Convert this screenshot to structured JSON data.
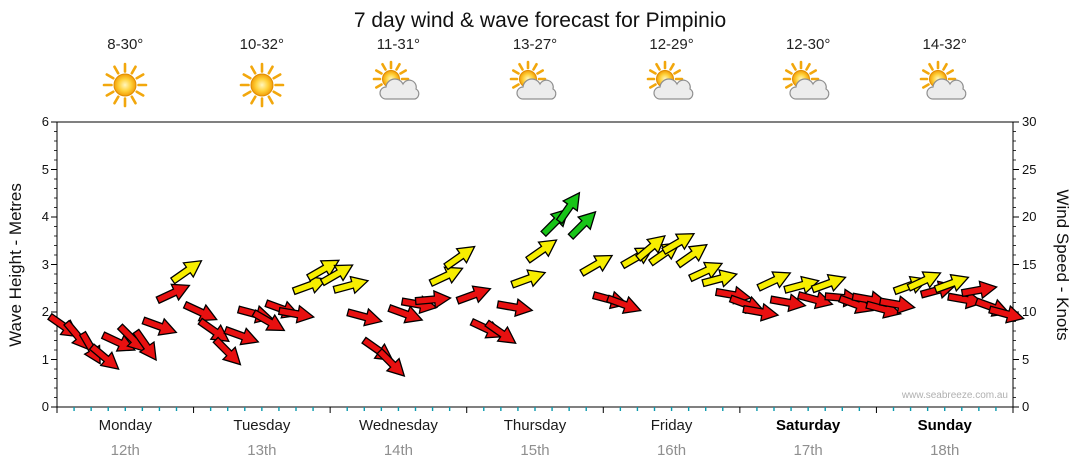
{
  "watermark": "www.seabreeze.com.au",
  "chart_data": {
    "type": "wind-arrows-timeseries",
    "title": "7 day wind & wave forecast for Pimpinio",
    "y_left": {
      "label": "Wave Height - Metres",
      "min": 0,
      "max": 6,
      "ticks": [
        0,
        1,
        2,
        3,
        4,
        5,
        6
      ]
    },
    "y_right": {
      "label": "Wind Speed - Knots",
      "min": 0,
      "max": 30,
      "ticks": [
        0,
        5,
        10,
        15,
        20,
        25,
        30
      ]
    },
    "speed_colors": {
      "red": "#e81010",
      "yellow": "#f7ee00",
      "green": "#17c417",
      "red_below_knots": 12.5,
      "green_from_knots": 19
    },
    "points_per_day": 10,
    "days": [
      {
        "name": "Monday",
        "date": "12th",
        "temp": "8-30°",
        "icon": "sunny",
        "weekend": false,
        "knots": [
          8.5,
          7.5,
          6.2,
          5.2,
          6.8,
          7.2,
          6.5,
          8.5,
          12.0,
          14.3
        ],
        "dirs": [
          35,
          50,
          60,
          40,
          25,
          45,
          55,
          20,
          -25,
          -35
        ]
      },
      {
        "name": "Tuesday",
        "date": "13th",
        "temp": "10-32°",
        "icon": "sunny",
        "weekend": false,
        "knots": [
          10.0,
          8.0,
          5.8,
          7.5,
          9.8,
          9.0,
          10.3,
          9.8,
          12.8,
          14.5
        ],
        "dirs": [
          25,
          35,
          45,
          20,
          15,
          30,
          20,
          10,
          -20,
          -30
        ]
      },
      {
        "name": "Wednesday",
        "date": "14th",
        "temp": "11-31°",
        "icon": "sun-cloud",
        "weekend": false,
        "knots": [
          14.0,
          12.8,
          9.5,
          6.0,
          4.6,
          9.8,
          10.8,
          11.3,
          13.8,
          15.8
        ],
        "dirs": [
          -30,
          -15,
          15,
          35,
          45,
          20,
          10,
          -5,
          -25,
          -35
        ]
      },
      {
        "name": "Thursday",
        "date": "15th",
        "temp": "13-27°",
        "icon": "sun-cloud",
        "weekend": false,
        "knots": [
          11.8,
          8.2,
          7.8,
          10.5,
          13.5,
          16.5,
          19.5,
          21.0,
          19.2,
          15.0
        ],
        "dirs": [
          -20,
          25,
          35,
          10,
          -20,
          -35,
          -45,
          -55,
          -45,
          -30
        ]
      },
      {
        "name": "Friday",
        "date": "16th",
        "temp": "12-29°",
        "icon": "sun-cloud",
        "weekend": false,
        "knots": [
          11.3,
          10.8,
          15.8,
          16.8,
          16.2,
          17.3,
          16.0,
          14.3,
          13.5,
          11.8
        ],
        "dirs": [
          15,
          20,
          -30,
          -40,
          -35,
          -30,
          -35,
          -25,
          -15,
          10
        ]
      },
      {
        "name": "Saturday",
        "date": "17th",
        "temp": "12-30°",
        "icon": "sun-cloud",
        "weekend": true,
        "knots": [
          10.8,
          10.0,
          13.3,
          11.0,
          12.8,
          11.3,
          13.0,
          11.5,
          10.8,
          11.3
        ],
        "dirs": [
          20,
          10,
          -25,
          10,
          -15,
          15,
          -20,
          5,
          20,
          10
        ]
      },
      {
        "name": "Sunday",
        "date": "18th",
        "temp": "14-32°",
        "icon": "sun-cloud",
        "weekend": true,
        "knots": [
          10.3,
          10.8,
          12.8,
          13.3,
          12.3,
          13.0,
          11.3,
          12.3,
          10.5,
          9.8
        ],
        "dirs": [
          15,
          10,
          -20,
          -25,
          -15,
          -20,
          10,
          -10,
          20,
          15
        ]
      }
    ]
  }
}
